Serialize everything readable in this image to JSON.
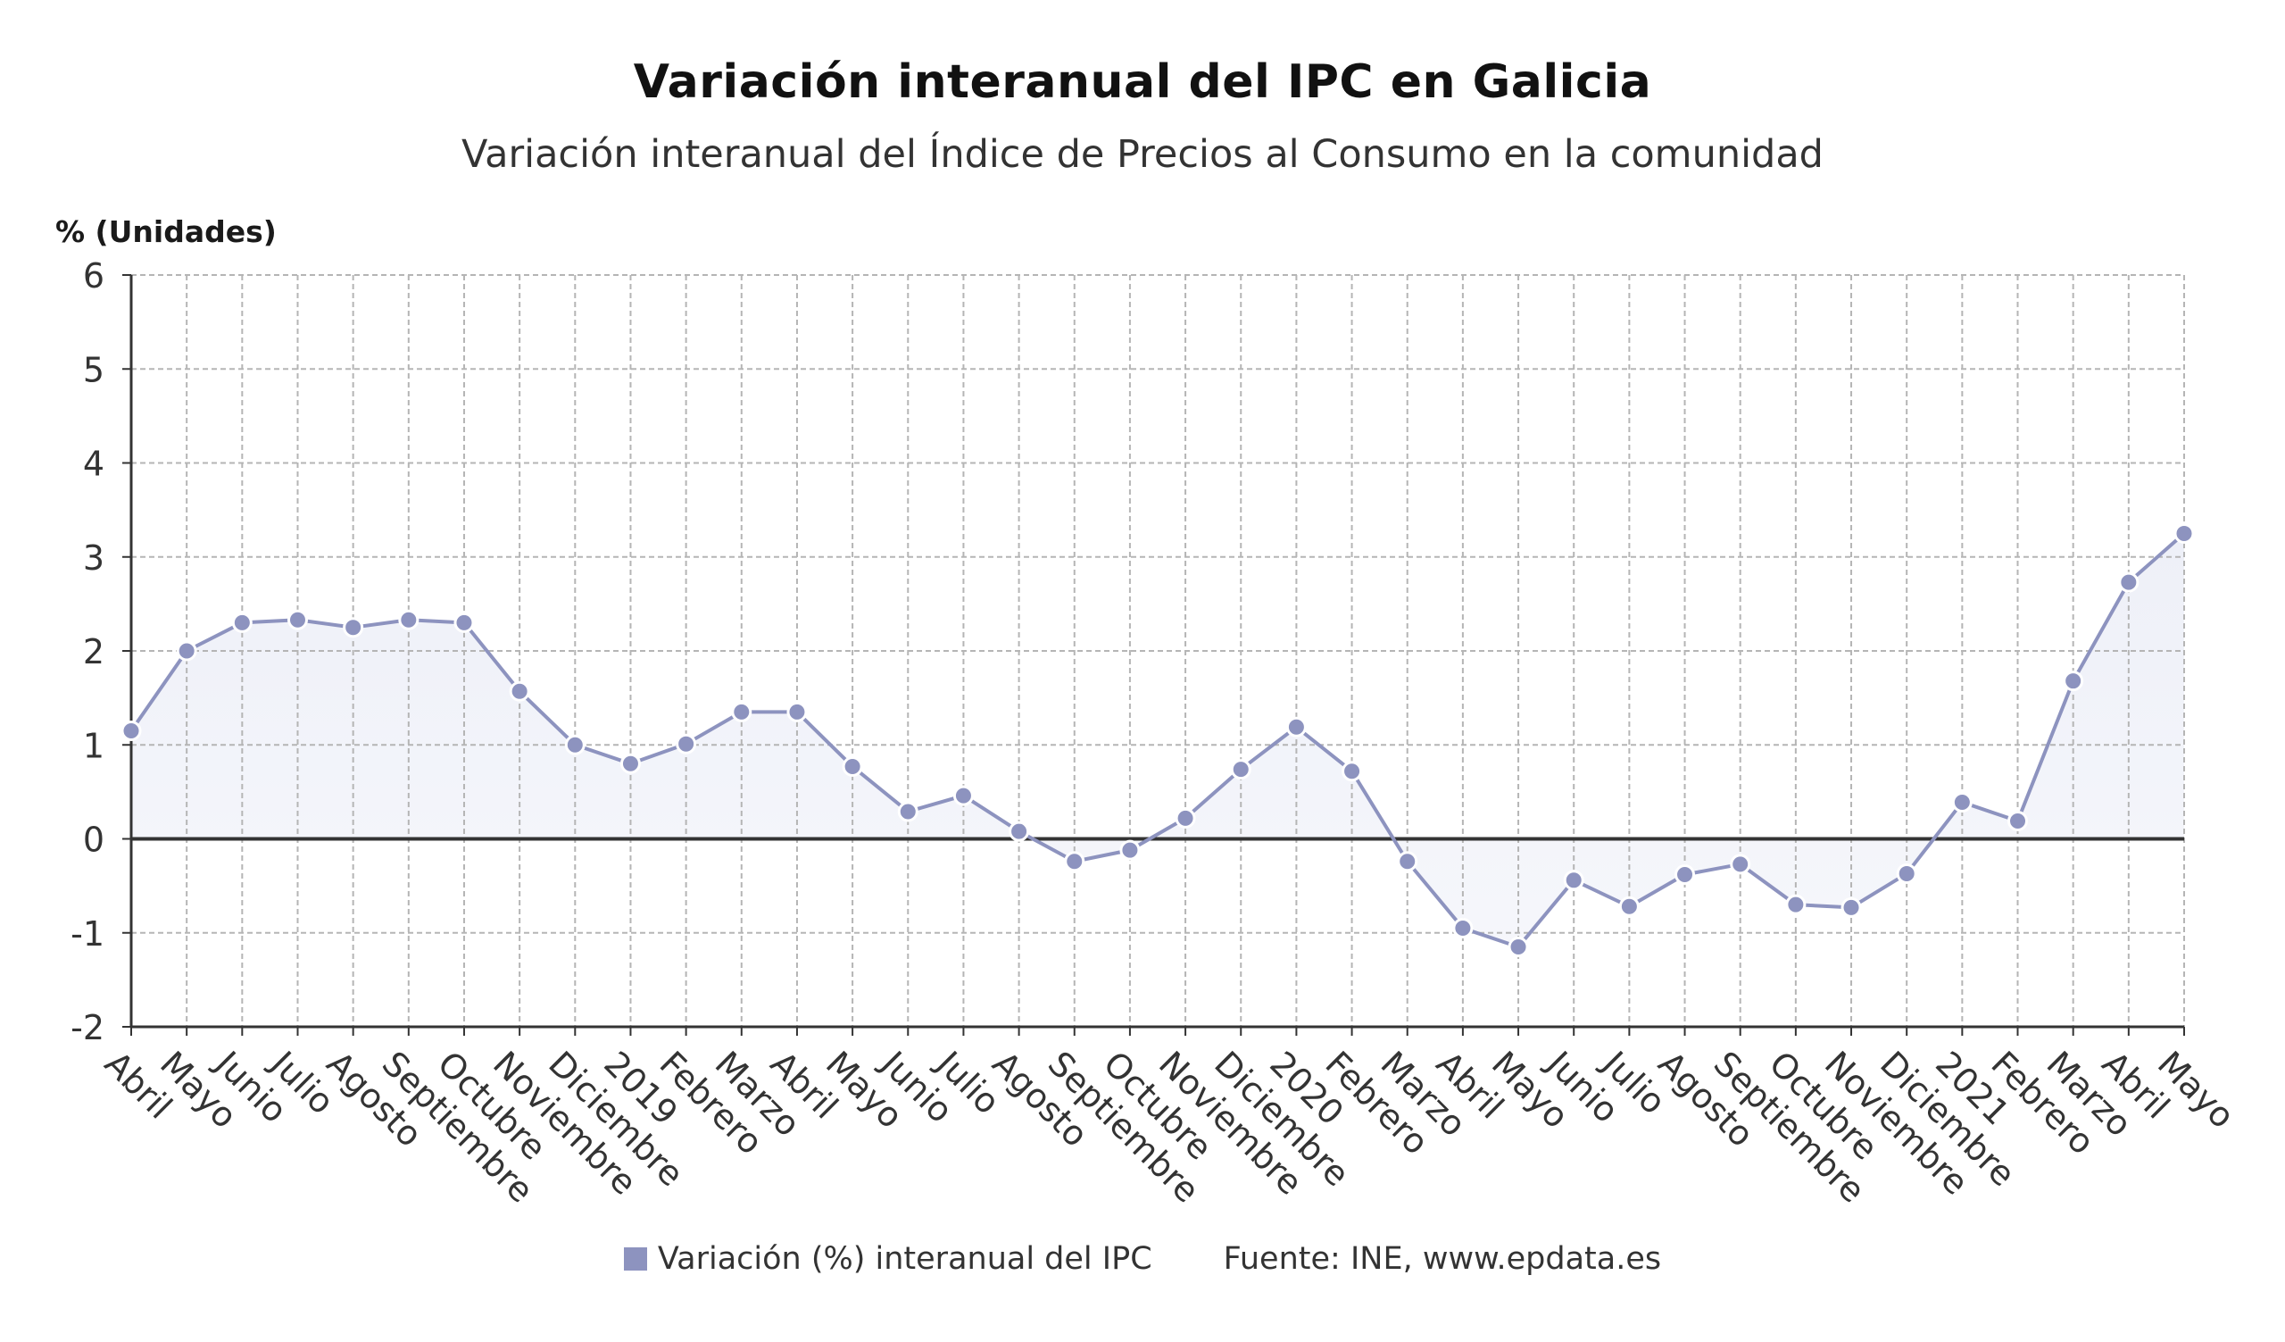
{
  "title": "Variación interanual del IPC en Galicia",
  "subtitle": "Variación interanual del Índice de Precios al Consumo en la comunidad",
  "source": "Fuente: INE, www.epdata.es",
  "colors": {
    "series": "#8d93bf",
    "fill": "#eef0f8",
    "grid": "#b5b5b5",
    "zero_line": "#333333",
    "text": "#333333"
  },
  "chart_data": {
    "type": "line",
    "title": "Variación interanual del IPC en Galicia",
    "subtitle": "Variación interanual del Índice de Precios al Consumo en la comunidad",
    "ylabel": "% (Unidades)",
    "xlabel": "",
    "ylim": [
      -2,
      6
    ],
    "yticks": [
      6,
      5,
      4,
      3,
      2,
      1,
      0,
      -1,
      -2
    ],
    "grid": true,
    "legend_position": "bottom",
    "categories": [
      "Abril",
      "Mayo",
      "Junio",
      "Julio",
      "Agosto",
      "Septiembre",
      "Octubre",
      "Noviembre",
      "Diciembre",
      "2019",
      "Febrero",
      "Marzo",
      "Abril",
      "Mayo",
      "Junio",
      "Julio",
      "Agosto",
      "Septiembre",
      "Octubre",
      "Noviembre",
      "Diciembre",
      "2020",
      "Febrero",
      "Marzo",
      "Abril",
      "Mayo",
      "Junio",
      "Julio",
      "Agosto",
      "Septiembre",
      "Octubre",
      "Noviembre",
      "Diciembre",
      "2021",
      "Febrero",
      "Marzo",
      "Abril",
      "Mayo"
    ],
    "series": [
      {
        "name": "Variación (%) interanual del IPC",
        "values": [
          1.15,
          2.0,
          2.3,
          2.33,
          2.25,
          2.33,
          2.3,
          1.57,
          1.0,
          0.8,
          1.01,
          1.35,
          1.35,
          0.77,
          0.29,
          0.46,
          0.08,
          -0.24,
          -0.12,
          0.22,
          0.74,
          1.19,
          0.72,
          -0.24,
          -0.95,
          -1.15,
          -0.44,
          -0.72,
          -0.38,
          -0.27,
          -0.7,
          -0.73,
          -0.37,
          0.39,
          0.19,
          1.68,
          2.73,
          3.25
        ]
      }
    ]
  }
}
